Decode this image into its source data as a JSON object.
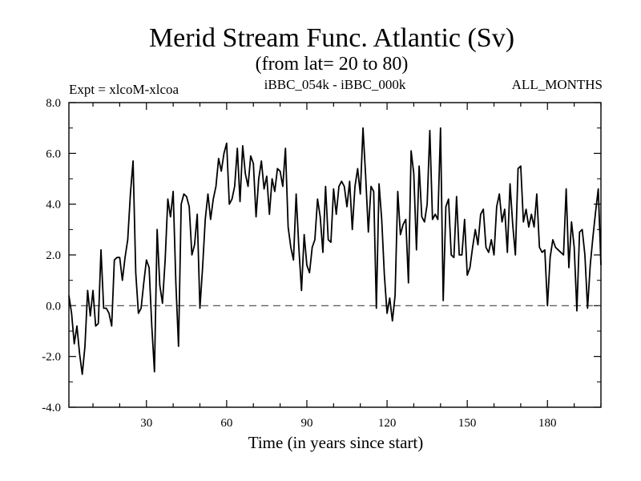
{
  "chart_data": {
    "type": "line",
    "title": "Merid Stream Func. Atlantic (Sv)",
    "subtitle": "(from lat= 20 to 80)",
    "left_label": "Expt = xlcoM-xlcoa",
    "center_label": "iBBC_054k - iBBC_000k",
    "right_label": "ALL_MONTHS",
    "xlabel": "Time (in years since start)",
    "ylabel": "",
    "xlim": [
      1,
      200
    ],
    "ylim": [
      -4.0,
      8.0
    ],
    "xticks": [
      30,
      60,
      90,
      120,
      150,
      180
    ],
    "xtick_labels": [
      "30",
      "60",
      "90",
      "120",
      "150",
      "180"
    ],
    "yticks": [
      -4.0,
      -2.0,
      0.0,
      2.0,
      4.0,
      6.0,
      8.0
    ],
    "ytick_labels": [
      "-4.0",
      "-2.0",
      "0.0",
      "2.0",
      "4.0",
      "6.0",
      "8.0"
    ],
    "reference_line": 0.0,
    "grid": false,
    "series": [
      {
        "name": "iBBC_054k - iBBC_000k",
        "x": [
          1,
          2,
          3,
          4,
          5,
          6,
          7,
          8,
          9,
          10,
          11,
          12,
          13,
          14,
          15,
          16,
          17,
          18,
          19,
          20,
          21,
          22,
          23,
          24,
          25,
          26,
          27,
          28,
          29,
          30,
          31,
          32,
          33,
          34,
          35,
          36,
          37,
          38,
          39,
          40,
          41,
          42,
          43,
          44,
          45,
          46,
          47,
          48,
          49,
          50,
          51,
          52,
          53,
          54,
          55,
          56,
          57,
          58,
          59,
          60,
          61,
          62,
          63,
          64,
          65,
          66,
          67,
          68,
          69,
          70,
          71,
          72,
          73,
          74,
          75,
          76,
          77,
          78,
          79,
          80,
          81,
          82,
          83,
          84,
          85,
          86,
          87,
          88,
          89,
          90,
          91,
          92,
          93,
          94,
          95,
          96,
          97,
          98,
          99,
          100,
          101,
          102,
          103,
          104,
          105,
          106,
          107,
          108,
          109,
          110,
          111,
          112,
          113,
          114,
          115,
          116,
          117,
          118,
          119,
          120,
          121,
          122,
          123,
          124,
          125,
          126,
          127,
          128,
          129,
          130,
          131,
          132,
          133,
          134,
          135,
          136,
          137,
          138,
          139,
          140,
          141,
          142,
          143,
          144,
          145,
          146,
          147,
          148,
          149,
          150,
          151,
          152,
          153,
          154,
          155,
          156,
          157,
          158,
          159,
          160,
          161,
          162,
          163,
          164,
          165,
          166,
          167,
          168,
          169,
          170,
          171,
          172,
          173,
          174,
          175,
          176,
          177,
          178,
          179,
          180,
          181,
          182,
          183,
          184,
          185,
          186,
          187,
          188,
          189,
          190,
          191,
          192,
          193,
          194,
          195,
          196,
          197,
          198,
          199,
          200
        ],
        "values": [
          0.4,
          -0.3,
          -1.5,
          -0.8,
          -1.9,
          -2.7,
          -1.6,
          0.6,
          -0.4,
          0.6,
          -0.8,
          -0.7,
          2.2,
          -0.1,
          -0.1,
          -0.3,
          -0.8,
          1.8,
          1.9,
          1.9,
          1.0,
          1.9,
          2.6,
          4.4,
          5.7,
          1.3,
          -0.3,
          -0.1,
          0.9,
          1.8,
          1.5,
          -0.8,
          -2.6,
          3.0,
          0.8,
          0.1,
          1.8,
          4.2,
          3.5,
          4.5,
          0.9,
          -1.6,
          4.0,
          4.4,
          4.3,
          3.9,
          2.0,
          2.4,
          3.6,
          -0.1,
          1.5,
          3.4,
          4.4,
          3.4,
          4.2,
          4.7,
          5.8,
          5.3,
          6.0,
          6.4,
          4.0,
          4.2,
          4.7,
          6.2,
          4.1,
          6.3,
          5.2,
          4.7,
          5.9,
          5.6,
          3.5,
          5.0,
          5.7,
          4.6,
          5.1,
          3.6,
          5.0,
          4.5,
          5.4,
          5.3,
          4.7,
          6.2,
          3.1,
          2.3,
          1.8,
          4.4,
          2.3,
          0.6,
          2.8,
          1.6,
          1.3,
          2.3,
          2.6,
          4.2,
          3.5,
          2.1,
          4.7,
          2.6,
          2.5,
          4.6,
          3.6,
          4.7,
          4.9,
          4.7,
          3.9,
          4.9,
          3.0,
          4.7,
          5.4,
          4.4,
          7.0,
          5.1,
          2.9,
          4.7,
          4.5,
          -0.1,
          4.8,
          3.4,
          1.2,
          -0.3,
          0.3,
          -0.6,
          0.4,
          4.5,
          2.8,
          3.2,
          3.4,
          0.9,
          6.1,
          5.2,
          2.2,
          5.5,
          3.5,
          3.3,
          4.0,
          6.9,
          3.4,
          3.6,
          3.4,
          7.0,
          0.2,
          3.9,
          4.2,
          2.0,
          1.9,
          4.3,
          2.0,
          2.0,
          3.4,
          1.2,
          1.5,
          2.3,
          3.0,
          2.4,
          3.6,
          3.8,
          2.3,
          2.1,
          2.6,
          2.0,
          3.9,
          4.4,
          3.3,
          3.8,
          2.1,
          4.8,
          3.2,
          2.0,
          5.4,
          5.5,
          3.3,
          3.8,
          3.1,
          3.6,
          3.1,
          4.4,
          2.3,
          2.1,
          2.2,
          0.0,
          1.9,
          2.6,
          2.3,
          2.2,
          2.1,
          2.0,
          4.6,
          1.5,
          3.3,
          2.3,
          -0.2,
          2.9,
          3.0,
          2.0,
          -0.1,
          1.6,
          2.7,
          3.7,
          4.6,
          1.6
        ]
      }
    ]
  }
}
